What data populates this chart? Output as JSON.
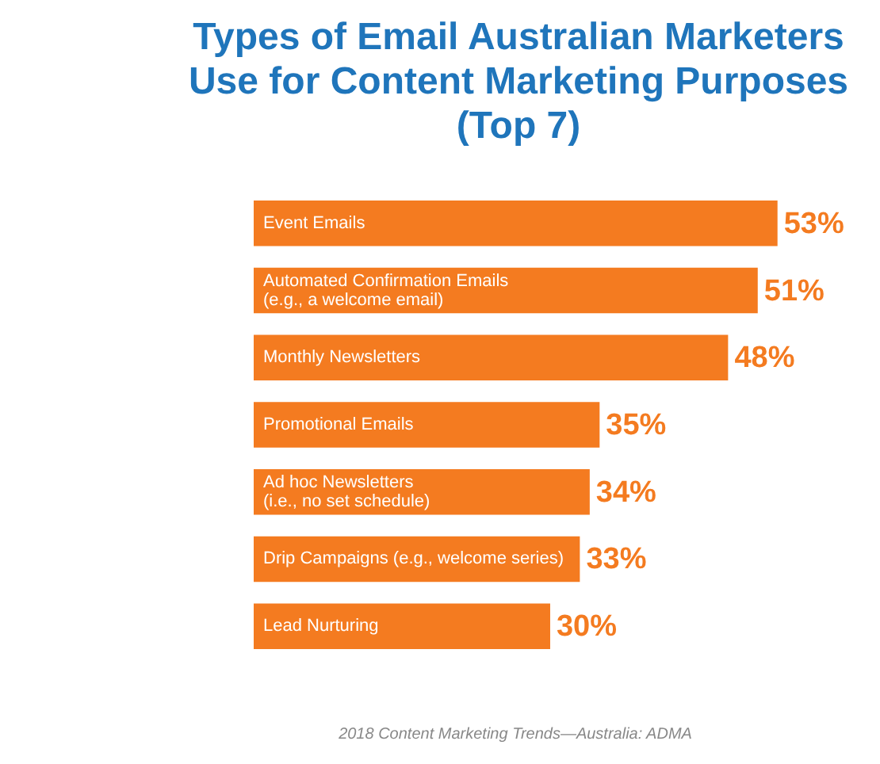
{
  "chart_data": {
    "type": "bar",
    "orientation": "horizontal",
    "title": "Types of Email Australian Marketers\nUse for Content Marketing Purposes\n(Top 7)",
    "categories": [
      "Event Emails",
      "Automated Confirmation Emails\n(e.g., a welcome email)",
      "Monthly Newsletters",
      "Promotional Emails",
      "Ad hoc Newsletters\n(i.e., no set schedule)",
      "Drip Campaigns (e.g., welcome series)",
      "Lead Nurturing"
    ],
    "values": [
      53,
      51,
      48,
      35,
      34,
      33,
      30
    ],
    "value_labels": [
      "53%",
      "51%",
      "48%",
      "35%",
      "34%",
      "33%",
      "30%"
    ],
    "color": "#f47b20",
    "annotations": [
      "2018 Content Marketing Trends—Australia: ADMA"
    ]
  }
}
